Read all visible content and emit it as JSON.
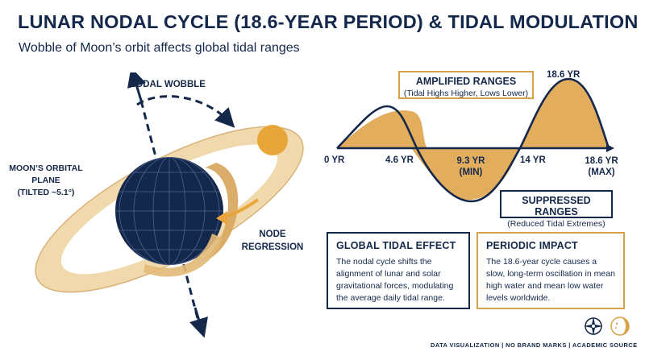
{
  "title": "LUNAR NODAL CYCLE (18.6-YEAR PERIOD) & TIDAL MODULATION",
  "subtitle": "Wobble of Moon’s orbit affects global tidal ranges",
  "left_diagram": {
    "nodal_wobble_label": "NODAL WOBBLE",
    "orbital_plane_label_line1": "MOON’S ORBITAL",
    "orbital_plane_label_line2": "PLANE",
    "orbital_plane_label_line3": "(TILTED ~5.1°)",
    "node_regression_label_line1": "NODE",
    "node_regression_label_line2": "REGRESSION",
    "colors": {
      "earth": "#14284b",
      "orbit": "#e8c58e",
      "moon": "#e8a63a",
      "arrow": "#14284b",
      "regression_arrow": "#e8a63a"
    }
  },
  "chart": {
    "peak_label": "18.6 YR",
    "axis_labels": [
      "0 YR",
      "4.6 YR",
      "9.3 YR",
      "14 YR",
      "18.6 YR"
    ],
    "min_sub": "(MIN)",
    "max_sub": "(MAX)",
    "amplified": {
      "title": "AMPLIFIED RANGES",
      "sub": "(Tidal Highs Higher, Lows Lower)"
    },
    "suppressed": {
      "title": "SUPPRESSED RANGES",
      "sub": "(Reduced Tidal Extremes)"
    },
    "colors": {
      "fill": "#e3ad5e",
      "line": "#14284b"
    }
  },
  "cards": {
    "global": {
      "title": "GLOBAL TIDAL EFFECT",
      "body": "The nodal cycle shifts the alignment of lunar and solar gravitational forces, modulating the average daily tidal range.",
      "border": "#14284b"
    },
    "periodic": {
      "title": "PERIODIC IMPACT",
      "body": "The 18.6-year cycle causes a slow, long-term oscillation in mean high water and mean low water levels worldwide.",
      "border": "#d7a245"
    }
  },
  "footer": "DATA VISUALIZATION | NO BRAND MARKS | ACADEMIC SOURCE",
  "footer_icons": [
    "compass-icon",
    "moon-phase-icon"
  ]
}
